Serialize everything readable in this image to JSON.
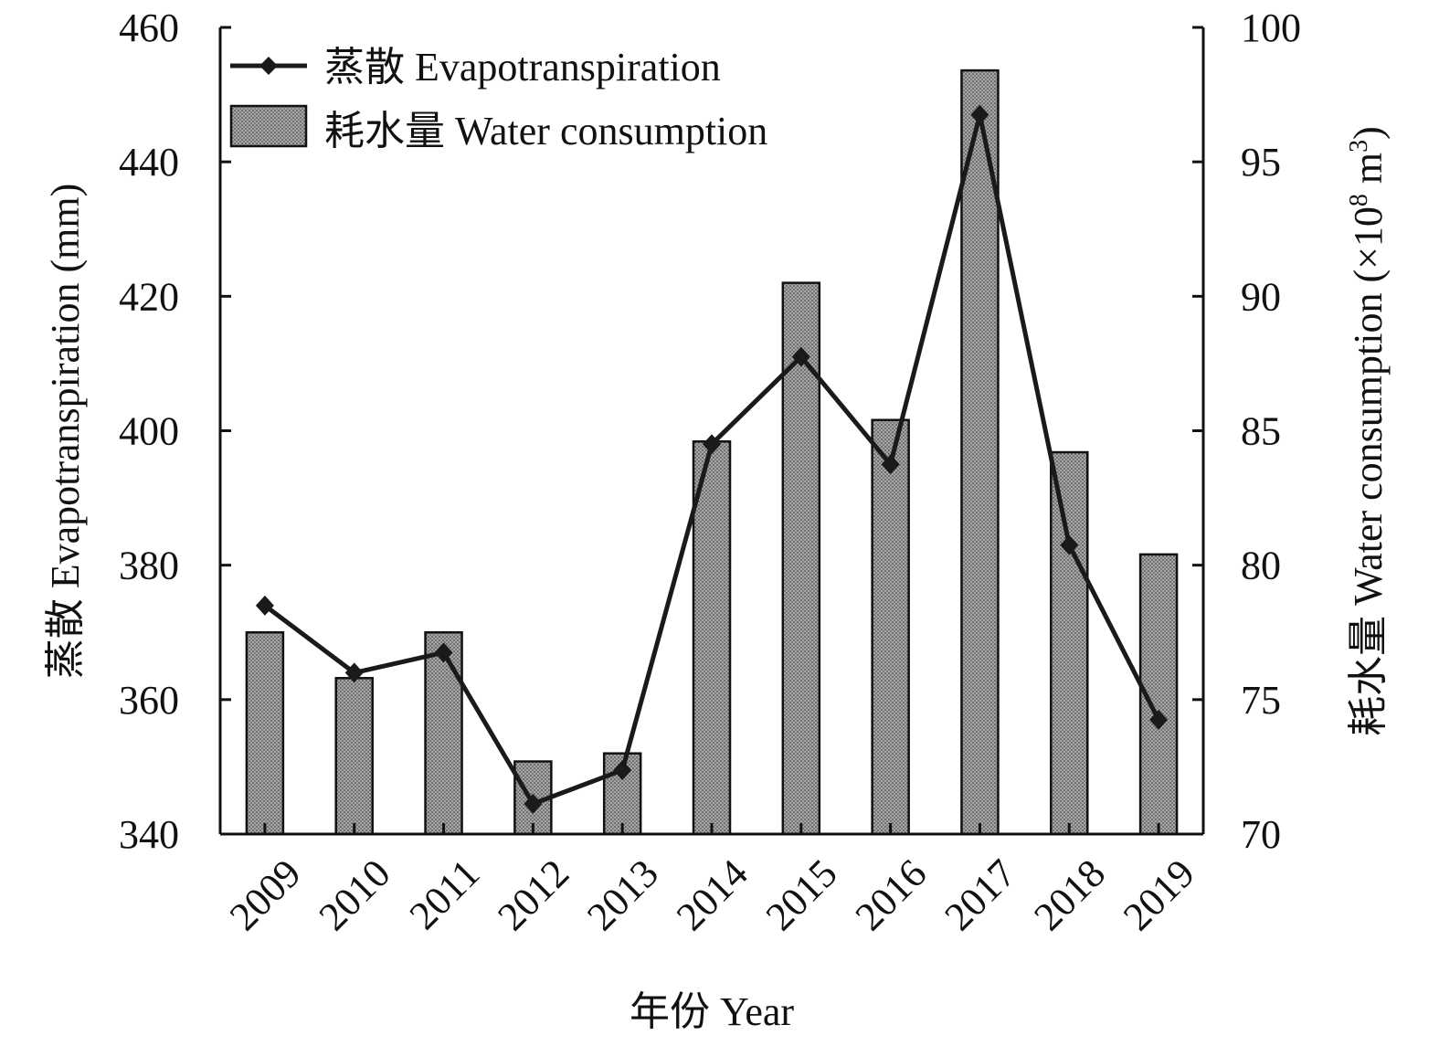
{
  "chart_data": {
    "type": "bar",
    "categories": [
      "2009",
      "2010",
      "2011",
      "2012",
      "2013",
      "2014",
      "2015",
      "2016",
      "2017",
      "2018",
      "2019"
    ],
    "xlabel": "年份 Year",
    "ylabel_left": "蒸散 Evapotranspiration (mm)",
    "ylabel_right_main": "耗水量 Water consumption (×10",
    "ylabel_right_exp": "8",
    "ylabel_right_unit": " m",
    "ylabel_right_unit_exp": "3",
    "ylabel_right_close": ")",
    "ylim_left": [
      340,
      460
    ],
    "ylim_right": [
      70,
      100
    ],
    "yticks_left": [
      "340",
      "360",
      "380",
      "400",
      "420",
      "440",
      "460"
    ],
    "yticks_right": [
      "70",
      "75",
      "80",
      "85",
      "90",
      "95",
      "100"
    ],
    "series": [
      {
        "name": "蒸散 Evapotranspiration",
        "type": "line",
        "axis": "left",
        "color": "#1a1a1a",
        "marker": "diamond",
        "values": [
          374,
          364,
          367,
          344.5,
          349.5,
          398,
          411,
          395,
          447,
          383,
          357
        ]
      },
      {
        "name": "耗水量 Water consumption",
        "type": "bar",
        "axis": "right",
        "color": "#8c8c8c",
        "values": [
          77.5,
          75.8,
          77.5,
          72.7,
          73.0,
          84.6,
          90.5,
          85.4,
          98.4,
          84.2,
          80.4
        ]
      }
    ],
    "legend": {
      "position": "top-left",
      "line_label": "蒸散 Evapotranspiration",
      "bar_label": "耗水量 Water consumption"
    },
    "grid": false
  }
}
